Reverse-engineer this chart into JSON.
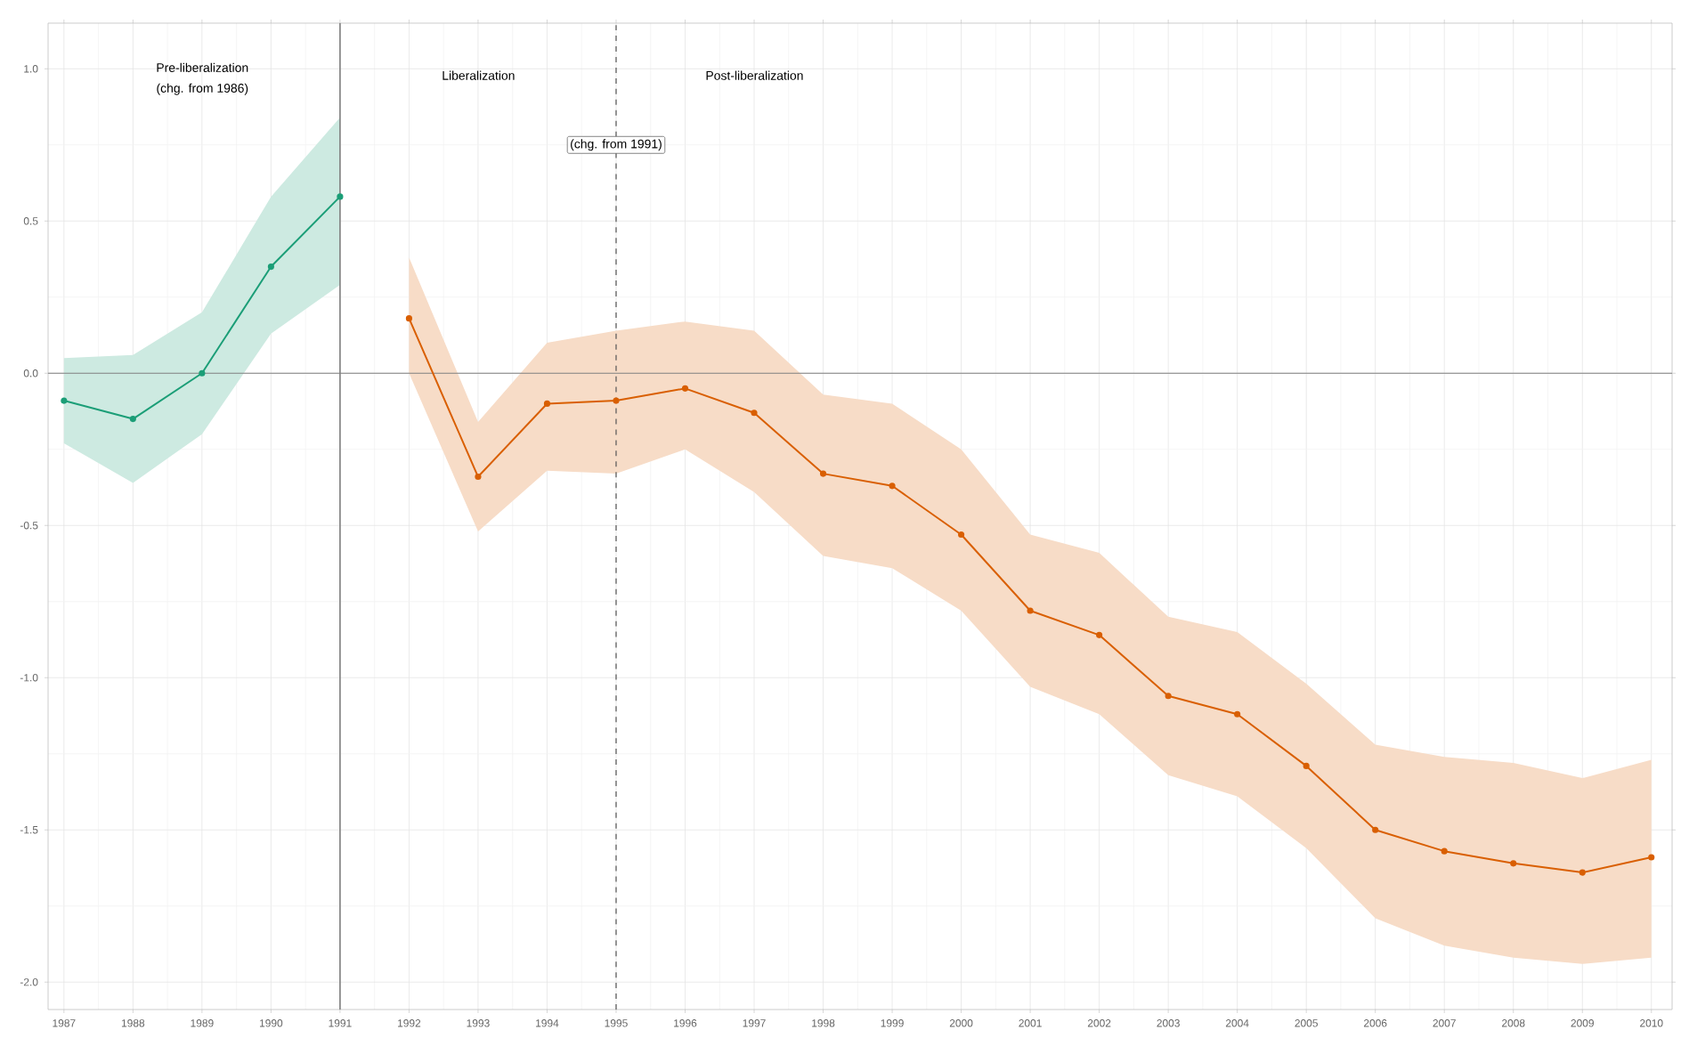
{
  "chart_data": {
    "type": "line",
    "series": [
      {
        "color": "#1b9e77",
        "x": [
          1987,
          1988,
          1989,
          1990,
          1991
        ],
        "values": [
          -0.09,
          -0.15,
          0.0,
          0.35,
          0.58
        ],
        "lower": [
          -0.23,
          -0.36,
          -0.2,
          0.13,
          0.29
        ],
        "upper": [
          0.05,
          0.06,
          0.2,
          0.58,
          0.84
        ]
      },
      {
        "color": "#d95f02",
        "x": [
          1992,
          1993,
          1994,
          1995,
          1996,
          1997,
          1998,
          1999,
          2000,
          2001,
          2002,
          2003,
          2004,
          2005,
          2006,
          2007,
          2008,
          2009,
          2010
        ],
        "values": [
          0.18,
          -0.34,
          -0.1,
          -0.09,
          -0.05,
          -0.13,
          -0.33,
          -0.37,
          -0.53,
          -0.78,
          -0.86,
          -1.06,
          -1.12,
          -1.29,
          -1.5,
          -1.57,
          -1.61,
          -1.64,
          -1.59
        ],
        "lower": [
          0.0,
          -0.52,
          -0.32,
          -0.33,
          -0.25,
          -0.39,
          -0.6,
          -0.64,
          -0.78,
          -1.03,
          -1.12,
          -1.32,
          -1.39,
          -1.56,
          -1.79,
          -1.88,
          -1.92,
          -1.94,
          -1.92
        ],
        "upper": [
          0.38,
          -0.16,
          0.1,
          0.14,
          0.17,
          0.14,
          -0.07,
          -0.1,
          -0.25,
          -0.53,
          -0.59,
          -0.8,
          -0.85,
          -1.02,
          -1.22,
          -1.26,
          -1.28,
          -1.33,
          -1.27
        ]
      }
    ],
    "xlim": [
      1986.77,
      2010.3
    ],
    "xticks": [
      1987,
      1988,
      1989,
      1990,
      1991,
      1992,
      1993,
      1994,
      1995,
      1996,
      1997,
      1998,
      1999,
      2000,
      2001,
      2002,
      2003,
      2004,
      2005,
      2006,
      2007,
      2008,
      2009,
      2010
    ],
    "ylim": [
      -2.09,
      1.15
    ],
    "yticks": [
      {
        "value": -2,
        "label": "-2.0"
      },
      {
        "value": -1.5,
        "label": "-1.5"
      },
      {
        "value": -1,
        "label": "-1.0"
      },
      {
        "value": -0.5,
        "label": "-0.5"
      },
      {
        "value": 0,
        "label": "0.0"
      },
      {
        "value": 0.5,
        "label": "0.5"
      },
      {
        "value": 1,
        "label": "1.0"
      }
    ],
    "ref_lines": [
      {
        "axis": "y",
        "value": 0,
        "color": "#7f7f7f",
        "line_style": "solid"
      },
      {
        "axis": "x",
        "value": 1991,
        "color": "#7f7f7f",
        "line_style": "solid"
      },
      {
        "axis": "x",
        "value": 1995,
        "color": "#555555",
        "line_style": "dashed"
      }
    ],
    "annotations": [
      "Pre-liberalization",
      "(chg. from 1986)",
      "Liberalization",
      "Post-liberalization",
      {
        "text": "(chg. from 1991)",
        "x": 1995,
        "y": 0.75
      }
    ],
    "grid": true,
    "marker": "circle",
    "line_style": "solid"
  }
}
